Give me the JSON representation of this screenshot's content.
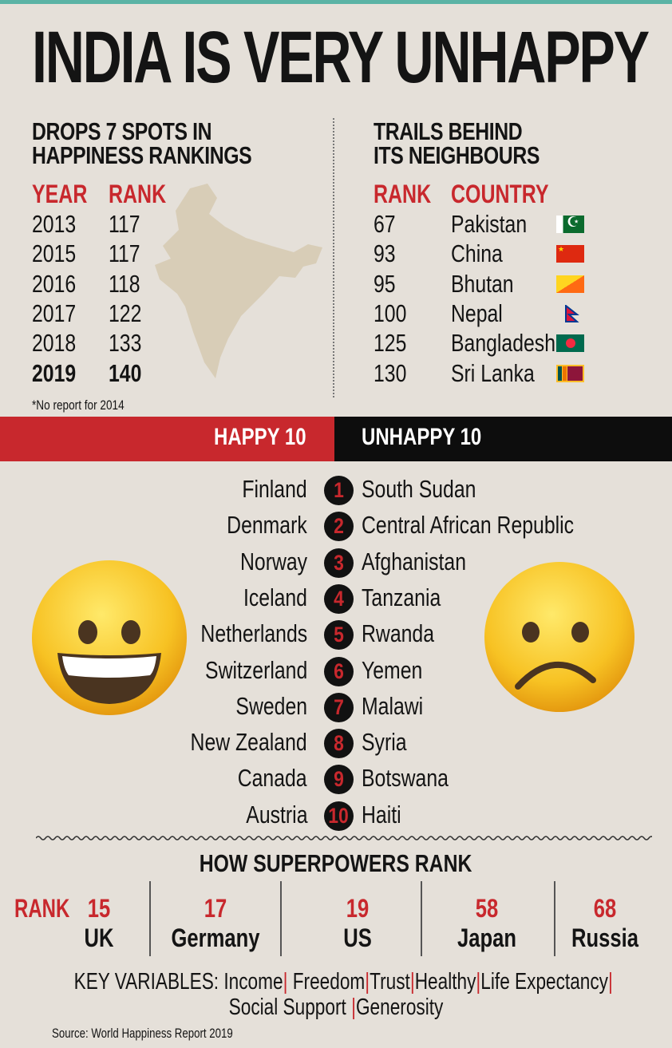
{
  "title": "INDIA IS VERY UNHAPPY",
  "left": {
    "subtitle_1": "DROPS 7 SPOTS IN",
    "subtitle_2": "HAPPINESS RANKINGS",
    "col_year": "YEAR",
    "col_rank": "RANK",
    "rows": [
      {
        "year": "2013",
        "rank": "117"
      },
      {
        "year": "2015",
        "rank": "117"
      },
      {
        "year": "2016",
        "rank": "118"
      },
      {
        "year": "2017",
        "rank": "122"
      },
      {
        "year": "2018",
        "rank": "133"
      },
      {
        "year": "2019",
        "rank": "140"
      }
    ],
    "footnote": "*No report for 2014"
  },
  "right": {
    "subtitle_1": "TRAILS BEHIND",
    "subtitle_2": "ITS NEIGHBOURS",
    "col_rank": "RANK",
    "col_country": "COUNTRY",
    "rows": [
      {
        "rank": "67",
        "country": "Pakistan",
        "flag": "pakistan-flag"
      },
      {
        "rank": "93",
        "country": "China",
        "flag": "china-flag"
      },
      {
        "rank": "95",
        "country": "Bhutan",
        "flag": "bhutan-flag"
      },
      {
        "rank": "100",
        "country": "Nepal",
        "flag": "nepal-flag"
      },
      {
        "rank": "125",
        "country": "Bangladesh",
        "flag": "bangladesh-flag"
      },
      {
        "rank": "130",
        "country": "Sri Lanka",
        "flag": "sri-lanka-flag"
      }
    ]
  },
  "band": {
    "happy": "HAPPY 10",
    "unhappy": "UNHAPPY 10"
  },
  "ranking": [
    {
      "n": "1",
      "happy": "Finland",
      "unhappy": "South Sudan"
    },
    {
      "n": "2",
      "happy": "Denmark",
      "unhappy": "Central African Republic"
    },
    {
      "n": "3",
      "happy": "Norway",
      "unhappy": "Afghanistan"
    },
    {
      "n": "4",
      "happy": "Iceland",
      "unhappy": "Tanzania"
    },
    {
      "n": "5",
      "happy": "Netherlands",
      "unhappy": "Rwanda"
    },
    {
      "n": "6",
      "happy": "Switzerland",
      "unhappy": "Yemen"
    },
    {
      "n": "7",
      "happy": "Sweden",
      "unhappy": "Malawi"
    },
    {
      "n": "8",
      "happy": "New Zealand",
      "unhappy": "Syria"
    },
    {
      "n": "9",
      "happy": "Canada",
      "unhappy": "Botswana"
    },
    {
      "n": "10",
      "happy": "Austria",
      "unhappy": "Haiti"
    }
  ],
  "superpowers": {
    "title": "HOW SUPERPOWERS RANK",
    "rank_label": "RANK",
    "items": [
      {
        "rank": "15",
        "name": "UK"
      },
      {
        "rank": "17",
        "name": "Germany"
      },
      {
        "rank": "19",
        "name": "US"
      },
      {
        "rank": "58",
        "name": "Japan"
      },
      {
        "rank": "68",
        "name": "Russia"
      }
    ]
  },
  "key_variables": {
    "label": "KEY VARIABLES:",
    "items": [
      "Income",
      "Freedom",
      "Trust",
      "Healthy",
      "Life Expectancy",
      "Social Support",
      "Generosity"
    ]
  },
  "source": "Source: World Happiness Report 2019",
  "colors": {
    "accent": "#c8282d",
    "teal": "#5bb3a5",
    "background": "#e5e0d9"
  }
}
